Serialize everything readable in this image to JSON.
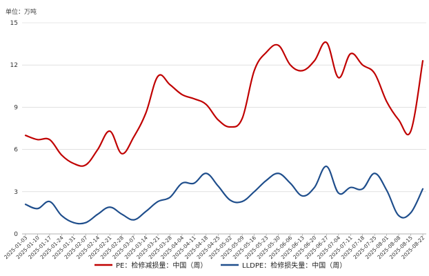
{
  "chart_data": {
    "type": "line",
    "unit_label": "单位：万吨",
    "ylim": [
      0,
      15
    ],
    "yticks": [
      0,
      3,
      6,
      9,
      12,
      15
    ],
    "grid": true,
    "legend_position": "bottom",
    "x": [
      "2025-01-03",
      "2025-01-10",
      "2025-01-17",
      "2025-01-24",
      "2025-01-31",
      "2025-02-07",
      "2025-02-14",
      "2025-02-21",
      "2025-02-28",
      "2025-03-07",
      "2025-03-14",
      "2025-03-21",
      "2025-03-28",
      "2025-04-04",
      "2025-04-11",
      "2025-04-18",
      "2025-04-25",
      "2025-05-02",
      "2025-05-09",
      "2025-05-16",
      "2025-05-23",
      "2025-05-30",
      "2025-06-06",
      "2025-06-13",
      "2025-06-20",
      "2025-06-27",
      "2025-07-04",
      "2025-07-11",
      "2025-07-18",
      "2025-07-25",
      "2025-08-01",
      "2025-08-08",
      "2025-08-15",
      "2025-08-22"
    ],
    "series": [
      {
        "name": "PE：检修减损量：中国（周）",
        "color": "#c00000",
        "values": [
          7.0,
          6.7,
          6.7,
          5.6,
          5.0,
          4.9,
          6.0,
          7.3,
          5.7,
          6.9,
          8.6,
          11.2,
          10.6,
          9.9,
          9.6,
          9.2,
          8.1,
          7.6,
          8.2,
          11.6,
          12.9,
          13.4,
          12.0,
          11.6,
          12.3,
          13.6,
          11.1,
          12.8,
          12.0,
          11.4,
          9.4,
          8.1,
          7.3,
          12.3
        ]
      },
      {
        "name": "LLDPE：检修损失量：中国（周）",
        "color": "#1f4e8c",
        "values": [
          2.1,
          1.8,
          2.3,
          1.3,
          0.8,
          0.8,
          1.4,
          1.9,
          1.4,
          1.0,
          1.6,
          2.3,
          2.6,
          3.6,
          3.6,
          4.3,
          3.4,
          2.4,
          2.3,
          3.0,
          3.8,
          4.3,
          3.6,
          2.7,
          3.3,
          4.8,
          2.9,
          3.3,
          3.2,
          4.3,
          3.1,
          1.3,
          1.5,
          3.2
        ]
      }
    ]
  }
}
